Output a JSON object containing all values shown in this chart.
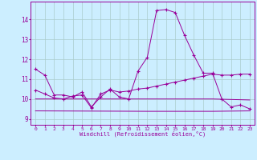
{
  "background_color": "#cceeff",
  "grid_color": "#aacccc",
  "line_color": "#990099",
  "xlabel": "Windchill (Refroidissement éolien,°C)",
  "ylabel_ticks": [
    9,
    10,
    11,
    12,
    13,
    14
  ],
  "xlim": [
    -0.5,
    23.5
  ],
  "ylim": [
    8.7,
    14.9
  ],
  "x_ticks": [
    0,
    1,
    2,
    3,
    4,
    5,
    6,
    7,
    8,
    9,
    10,
    11,
    12,
    13,
    14,
    15,
    16,
    17,
    18,
    19,
    20,
    21,
    22,
    23
  ],
  "series": [
    {
      "x": [
        0,
        1,
        2,
        3,
        4,
        5,
        6,
        7,
        8,
        9,
        10,
        11,
        12,
        13,
        14,
        15,
        16,
        17,
        18,
        19,
        20,
        21,
        22,
        23
      ],
      "y": [
        11.5,
        11.2,
        10.2,
        10.2,
        10.1,
        10.35,
        9.6,
        10.1,
        10.5,
        10.1,
        10.0,
        11.4,
        12.1,
        14.45,
        14.5,
        14.35,
        13.2,
        12.2,
        11.3,
        11.3,
        10.0,
        9.6,
        9.7,
        9.5
      ],
      "marker": true
    },
    {
      "x": [
        0,
        1,
        2,
        3,
        4,
        5,
        6,
        7,
        8,
        9,
        10,
        11,
        12,
        13,
        14,
        15,
        16,
        17,
        18,
        19,
        20,
        21,
        22,
        23
      ],
      "y": [
        10.45,
        10.25,
        10.05,
        10.0,
        10.15,
        10.2,
        9.55,
        10.25,
        10.45,
        10.35,
        10.4,
        10.5,
        10.55,
        10.65,
        10.75,
        10.85,
        10.95,
        11.05,
        11.15,
        11.25,
        11.2,
        11.2,
        11.25,
        11.25
      ],
      "marker": true
    },
    {
      "x": [
        0,
        12,
        19,
        23
      ],
      "y": [
        10.0,
        10.0,
        10.0,
        9.95
      ],
      "marker": false
    },
    {
      "x": [
        0,
        12,
        19,
        23
      ],
      "y": [
        9.4,
        9.38,
        9.38,
        9.4
      ],
      "marker": false
    }
  ]
}
